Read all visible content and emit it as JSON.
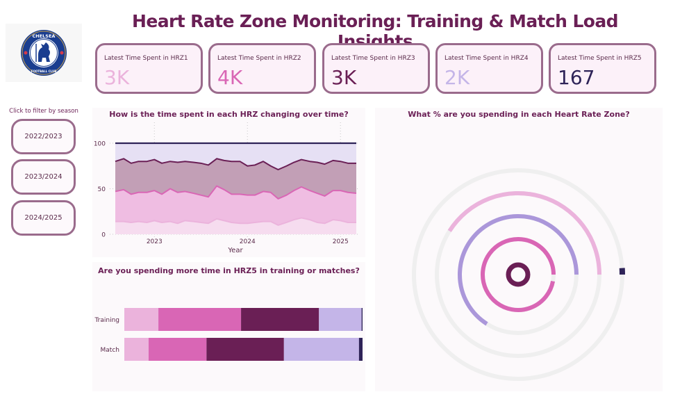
{
  "header": {
    "title": "Heart Rate Zone Monitoring: Training & Match Load Insights"
  },
  "logo": {
    "lines": [
      "CHELSEA",
      "FOOTBALL CLUB"
    ]
  },
  "kpis": [
    {
      "label": "Latest Time Spent in HRZ1",
      "value": "3K",
      "color": "#ebb3dc"
    },
    {
      "label": "Latest Time Spent in HRZ2",
      "value": "4K",
      "color": "#d966b5"
    },
    {
      "label": "Latest Time Spent in HRZ3",
      "value": "3K",
      "color": "#6a1f55"
    },
    {
      "label": "Latest Time Spent in HRZ4",
      "value": "2K",
      "color": "#c4b5e8"
    },
    {
      "label": "Latest Time Spent in HRZ5",
      "value": "167",
      "color": "#2e2358"
    }
  ],
  "filter": {
    "label": "Click to filter by season",
    "seasons": [
      "2022/2023",
      "2023/2024",
      "2024/2025"
    ]
  },
  "chart_data": [
    {
      "type": "area",
      "title": "How is the time spent in each HRZ changing over time?",
      "xlabel": "Year",
      "ylabel": "",
      "ylim": [
        0,
        100
      ],
      "yticks": [
        "0",
        "50",
        "100"
      ],
      "xticks": [
        {
          "label": "2023",
          "x": 2023.0
        },
        {
          "label": "2024",
          "x": 2024.0
        },
        {
          "label": "2025",
          "x": 2025.0
        }
      ],
      "xlim": [
        2022.58,
        2025.17
      ],
      "grid": true,
      "stacked_cumulative": true,
      "x": [
        2022.58,
        2022.67,
        2022.75,
        2022.83,
        2022.92,
        2023.0,
        2023.08,
        2023.17,
        2023.25,
        2023.33,
        2023.42,
        2023.5,
        2023.58,
        2023.67,
        2023.75,
        2023.83,
        2023.92,
        2024.0,
        2024.08,
        2024.17,
        2024.25,
        2024.33,
        2024.42,
        2024.5,
        2024.58,
        2024.67,
        2024.75,
        2024.83,
        2024.92,
        2025.0,
        2025.08,
        2025.17
      ],
      "series": [
        {
          "name": "HRZ1",
          "color": "#ebb3dc",
          "fill": "#f6dcef",
          "values": [
            14,
            14,
            13,
            14,
            13,
            15,
            13,
            14,
            12,
            15,
            14,
            13,
            12,
            17,
            15,
            13,
            12,
            12,
            13,
            14,
            14,
            10,
            13,
            16,
            18,
            16,
            13,
            12,
            16,
            15,
            13,
            13
          ]
        },
        {
          "name": "HRZ2",
          "color": "#d966b5",
          "fill": "#efbde2",
          "values": [
            47,
            49,
            44,
            46,
            46,
            48,
            44,
            50,
            46,
            47,
            45,
            43,
            41,
            53,
            49,
            44,
            44,
            43,
            43,
            47,
            46,
            39,
            43,
            48,
            52,
            48,
            45,
            42,
            48,
            48,
            46,
            45
          ]
        },
        {
          "name": "HRZ3",
          "color": "#6a1f55",
          "fill": "#c29fb6",
          "values": [
            80,
            83,
            78,
            80,
            80,
            82,
            78,
            80,
            79,
            80,
            79,
            78,
            76,
            83,
            81,
            80,
            80,
            75,
            76,
            80,
            75,
            71,
            75,
            79,
            82,
            80,
            79,
            77,
            81,
            80,
            78,
            78
          ]
        },
        {
          "name": "HRZ4",
          "color": "#c4b5e8",
          "fill": "#e6e0f4",
          "values": [
            100,
            100,
            100,
            100,
            100,
            100,
            100,
            100,
            100,
            100,
            100,
            100,
            100,
            100,
            100,
            100,
            100,
            100,
            100,
            100,
            100,
            100,
            100,
            100,
            100,
            100,
            100,
            100,
            100,
            100,
            100,
            100
          ]
        },
        {
          "name": "HRZ5",
          "color": "#2e2358",
          "fill": "#e6e0f4",
          "values": [
            100,
            100,
            100,
            100,
            100,
            100,
            100,
            100,
            100,
            100,
            100,
            100,
            100,
            100,
            100,
            100,
            100,
            100,
            100,
            100,
            100,
            100,
            100,
            100,
            100,
            100,
            100,
            100,
            100,
            100,
            100,
            100
          ]
        }
      ]
    },
    {
      "type": "bar",
      "orientation": "horizontal",
      "stacked": "100%",
      "title": "Are you spending more time in HRZ5 in training or matches?",
      "categories": [
        "Training",
        "Match"
      ],
      "series": [
        {
          "name": "HRZ1",
          "color": "#ebb3dc",
          "values": [
            14.3,
            10.2
          ]
        },
        {
          "name": "HRZ2",
          "color": "#d966b5",
          "values": [
            34.7,
            24.3
          ]
        },
        {
          "name": "HRZ3",
          "color": "#6a1f55",
          "values": [
            32.7,
            32.5
          ]
        },
        {
          "name": "HRZ4",
          "color": "#c4b5e8",
          "values": [
            17.9,
            31.5
          ]
        },
        {
          "name": "HRZ5",
          "color": "#2e2358",
          "values": [
            0.4,
            1.5
          ]
        }
      ]
    },
    {
      "type": "radial",
      "title": "What % are you spending in each Heart Rate Zone?",
      "track_color": "#efefef",
      "series": [
        {
          "name": "HRZ3",
          "color": "#6a1f55",
          "value": 100
        },
        {
          "name": "HRZ2",
          "color": "#d966b5",
          "value": 97
        },
        {
          "name": "HRZ4",
          "color": "#ab97da",
          "value": 66
        },
        {
          "name": "HRZ1",
          "color": "#ebb3dc",
          "value": 41
        },
        {
          "name": "HRZ5",
          "color": "#2e2358",
          "value": 1
        }
      ]
    }
  ]
}
